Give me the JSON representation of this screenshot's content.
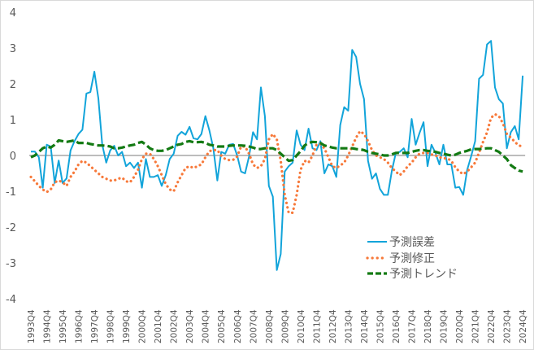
{
  "chart_data": {
    "type": "line",
    "title": "",
    "xlabel": "",
    "ylabel": "",
    "ylim": [
      -4,
      4
    ],
    "yticks": [
      "4",
      "3",
      "2",
      "1",
      "0",
      "-1",
      "-2",
      "-3",
      "-4"
    ],
    "grid": false,
    "legend_position": "bottom-right",
    "x_tick_labels": [
      "1993Q4",
      "1994Q4",
      "1995Q4",
      "1996Q4",
      "1997Q4",
      "1998Q4",
      "1999Q4",
      "2000Q4",
      "2001Q4",
      "2002Q4",
      "2003Q4",
      "2004Q4",
      "2005Q4",
      "2006Q4",
      "2007Q4",
      "2008Q4",
      "2009Q4",
      "2010Q4",
      "2011Q4",
      "2012Q4",
      "2013Q4",
      "2014Q4",
      "2015Q4",
      "2016Q4",
      "2017Q4",
      "2018Q4",
      "2019Q4",
      "2020Q4",
      "2021Q4",
      "2022Q4",
      "2023Q4",
      "2024Q4"
    ],
    "x_quarters_per_tick": 4,
    "series": [
      {
        "name": "予測誤差",
        "color": "#12A4DA",
        "style": "solid",
        "values": [
          0.11,
          0.11,
          -0.05,
          -0.9,
          0.3,
          0.25,
          -0.77,
          -0.14,
          -0.77,
          -0.64,
          0.14,
          0.4,
          0.6,
          0.72,
          1.73,
          1.77,
          2.34,
          1.6,
          0.3,
          -0.2,
          0.14,
          0.27,
          0.0,
          0.1,
          -0.3,
          -0.2,
          -0.35,
          -0.2,
          -0.9,
          -0.1,
          -0.6,
          -0.6,
          -0.55,
          -0.85,
          -0.55,
          -0.1,
          0.05,
          0.55,
          0.66,
          0.58,
          0.8,
          0.48,
          0.45,
          0.6,
          1.1,
          0.7,
          0.2,
          -0.7,
          0.1,
          0.05,
          0.3,
          0.32,
          0.0,
          -0.45,
          -0.5,
          -0.03,
          0.65,
          0.45,
          1.9,
          1.1,
          -0.85,
          -1.15,
          -3.2,
          -2.75,
          -0.45,
          -0.3,
          -0.2,
          0.7,
          0.3,
          0.15,
          0.75,
          0.2,
          0.15,
          0.4,
          -0.5,
          -0.25,
          -0.3,
          -0.6,
          0.85,
          1.35,
          1.25,
          2.95,
          2.75,
          2.0,
          1.57,
          -0.15,
          -0.65,
          -0.5,
          -0.93,
          -1.1,
          -1.1,
          -0.43,
          0.07,
          0.1,
          0.2,
          -0.05,
          1.02,
          0.3,
          0.63,
          0.93,
          -0.3,
          0.3,
          0.07,
          -0.25,
          0.3,
          -0.25,
          -0.25,
          -0.9,
          -0.88,
          -1.1,
          -0.4,
          -0.02,
          0.4,
          2.14,
          2.25,
          3.1,
          3.2,
          1.9,
          1.57,
          1.45,
          0.2,
          0.65,
          0.82,
          0.45,
          2.23
        ]
      },
      {
        "name": "予測修正",
        "color": "#F7793A",
        "style": "dotted",
        "values": [
          -0.6,
          -0.72,
          -0.85,
          -0.95,
          -1.02,
          -0.95,
          -0.75,
          -0.7,
          -0.75,
          -0.85,
          -0.6,
          -0.45,
          -0.25,
          -0.15,
          -0.2,
          -0.3,
          -0.4,
          -0.5,
          -0.6,
          -0.65,
          -0.7,
          -0.7,
          -0.65,
          -0.62,
          -0.72,
          -0.75,
          -0.6,
          -0.4,
          -0.1,
          0.05,
          0.05,
          -0.1,
          -0.3,
          -0.55,
          -0.8,
          -0.95,
          -1.0,
          -0.75,
          -0.55,
          -0.35,
          -0.3,
          -0.35,
          -0.3,
          -0.25,
          -0.05,
          0.12,
          0.15,
          0.15,
          0.0,
          -0.1,
          -0.13,
          -0.12,
          -0.03,
          0.25,
          0.25,
          0.05,
          -0.25,
          -0.35,
          -0.3,
          -0.1,
          0.45,
          0.6,
          0.45,
          -0.15,
          -1.1,
          -1.6,
          -1.6,
          -1.1,
          -0.4,
          -0.15,
          -0.2,
          0.0,
          0.3,
          0.32,
          0.2,
          -0.05,
          -0.3,
          -0.35,
          -0.28,
          -0.2,
          0.0,
          0.25,
          0.5,
          0.68,
          0.6,
          0.4,
          0.15,
          0.0,
          -0.05,
          -0.1,
          -0.2,
          -0.35,
          -0.45,
          -0.55,
          -0.45,
          -0.3,
          -0.2,
          -0.05,
          0.05,
          0.07,
          0.07,
          0.03,
          0.0,
          -0.05,
          -0.08,
          -0.08,
          -0.15,
          -0.33,
          -0.45,
          -0.52,
          -0.45,
          -0.33,
          -0.2,
          0.08,
          0.38,
          0.64,
          1.05,
          1.15,
          1.1,
          0.9,
          0.6,
          0.5,
          0.38,
          0.28,
          0.25
        ]
      },
      {
        "name": "予測トレンド",
        "color": "#137A13",
        "style": "dashed",
        "values": [
          -0.05,
          0.0,
          0.1,
          0.2,
          0.25,
          0.22,
          0.3,
          0.42,
          0.4,
          0.38,
          0.4,
          0.42,
          0.35,
          0.35,
          0.35,
          0.32,
          0.3,
          0.28,
          0.28,
          0.27,
          0.25,
          0.2,
          0.2,
          0.22,
          0.25,
          0.28,
          0.3,
          0.35,
          0.38,
          0.3,
          0.2,
          0.15,
          0.13,
          0.13,
          0.15,
          0.2,
          0.25,
          0.3,
          0.32,
          0.38,
          0.4,
          0.37,
          0.37,
          0.38,
          0.35,
          0.3,
          0.28,
          0.25,
          0.25,
          0.25,
          0.27,
          0.28,
          0.28,
          0.28,
          0.27,
          0.25,
          0.22,
          0.18,
          0.18,
          0.2,
          0.2,
          0.2,
          0.15,
          0.05,
          -0.05,
          -0.15,
          -0.13,
          0.0,
          0.12,
          0.28,
          0.35,
          0.38,
          0.37,
          0.35,
          0.28,
          0.25,
          0.22,
          0.2,
          0.2,
          0.2,
          0.2,
          0.2,
          0.18,
          0.17,
          0.15,
          0.1,
          0.07,
          0.05,
          0.03,
          0.0,
          0.0,
          0.03,
          0.07,
          0.07,
          0.07,
          0.07,
          0.1,
          0.13,
          0.15,
          0.15,
          0.13,
          0.12,
          0.1,
          0.07,
          0.05,
          0.02,
          0.0,
          0.02,
          0.07,
          0.1,
          0.13,
          0.17,
          0.18,
          0.18,
          0.19,
          0.2,
          0.2,
          0.15,
          0.1,
          0.0,
          -0.1,
          -0.27,
          -0.35,
          -0.42,
          -0.45
        ]
      }
    ]
  }
}
